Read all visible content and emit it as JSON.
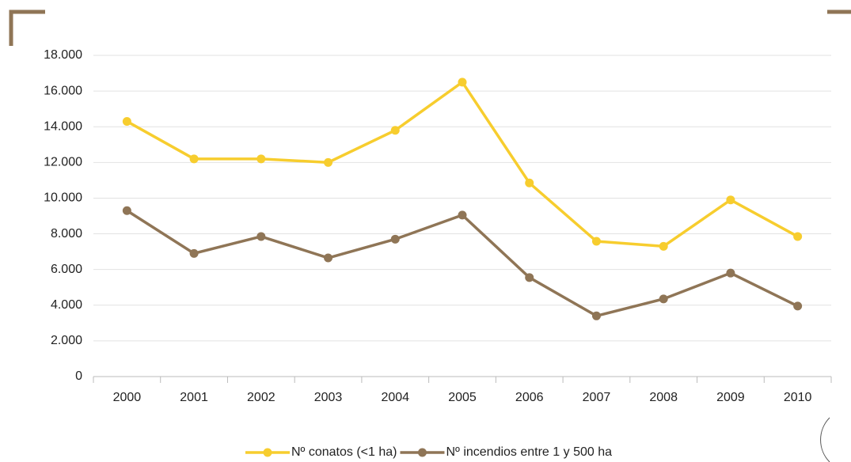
{
  "chart_data": {
    "type": "line",
    "categories": [
      "2000",
      "2001",
      "2002",
      "2003",
      "2004",
      "2005",
      "2006",
      "2007",
      "2008",
      "2009",
      "2010"
    ],
    "series": [
      {
        "name": "Nº conatos (<1 ha)",
        "color": "#f7cd2e",
        "values": [
          14300,
          12200,
          12200,
          12000,
          13800,
          16500,
          10850,
          7580,
          7300,
          9900,
          7850
        ]
      },
      {
        "name": "Nº incendios entre 1 y 500 ha",
        "color": "#8f7556",
        "values": [
          9300,
          6900,
          7850,
          6650,
          7700,
          9050,
          5550,
          3400,
          4350,
          5800,
          3950
        ]
      }
    ],
    "ylim": [
      0,
      18000
    ],
    "yticks": [
      0,
      {
        "value": 2000,
        "label": "2.000"
      },
      {
        "value": 4000,
        "label": "4.000"
      },
      {
        "value": 6000,
        "label": "6.000"
      },
      {
        "value": 8000,
        "label": "8.000"
      },
      {
        "value": 10000,
        "label": "10.000"
      },
      {
        "value": 12000,
        "label": "12.000"
      },
      {
        "value": 14000,
        "label": "14.000"
      },
      {
        "value": 16000,
        "label": "16.000"
      },
      {
        "value": 18000,
        "label": "18.000"
      }
    ],
    "grid": true,
    "legend": "bottom"
  }
}
